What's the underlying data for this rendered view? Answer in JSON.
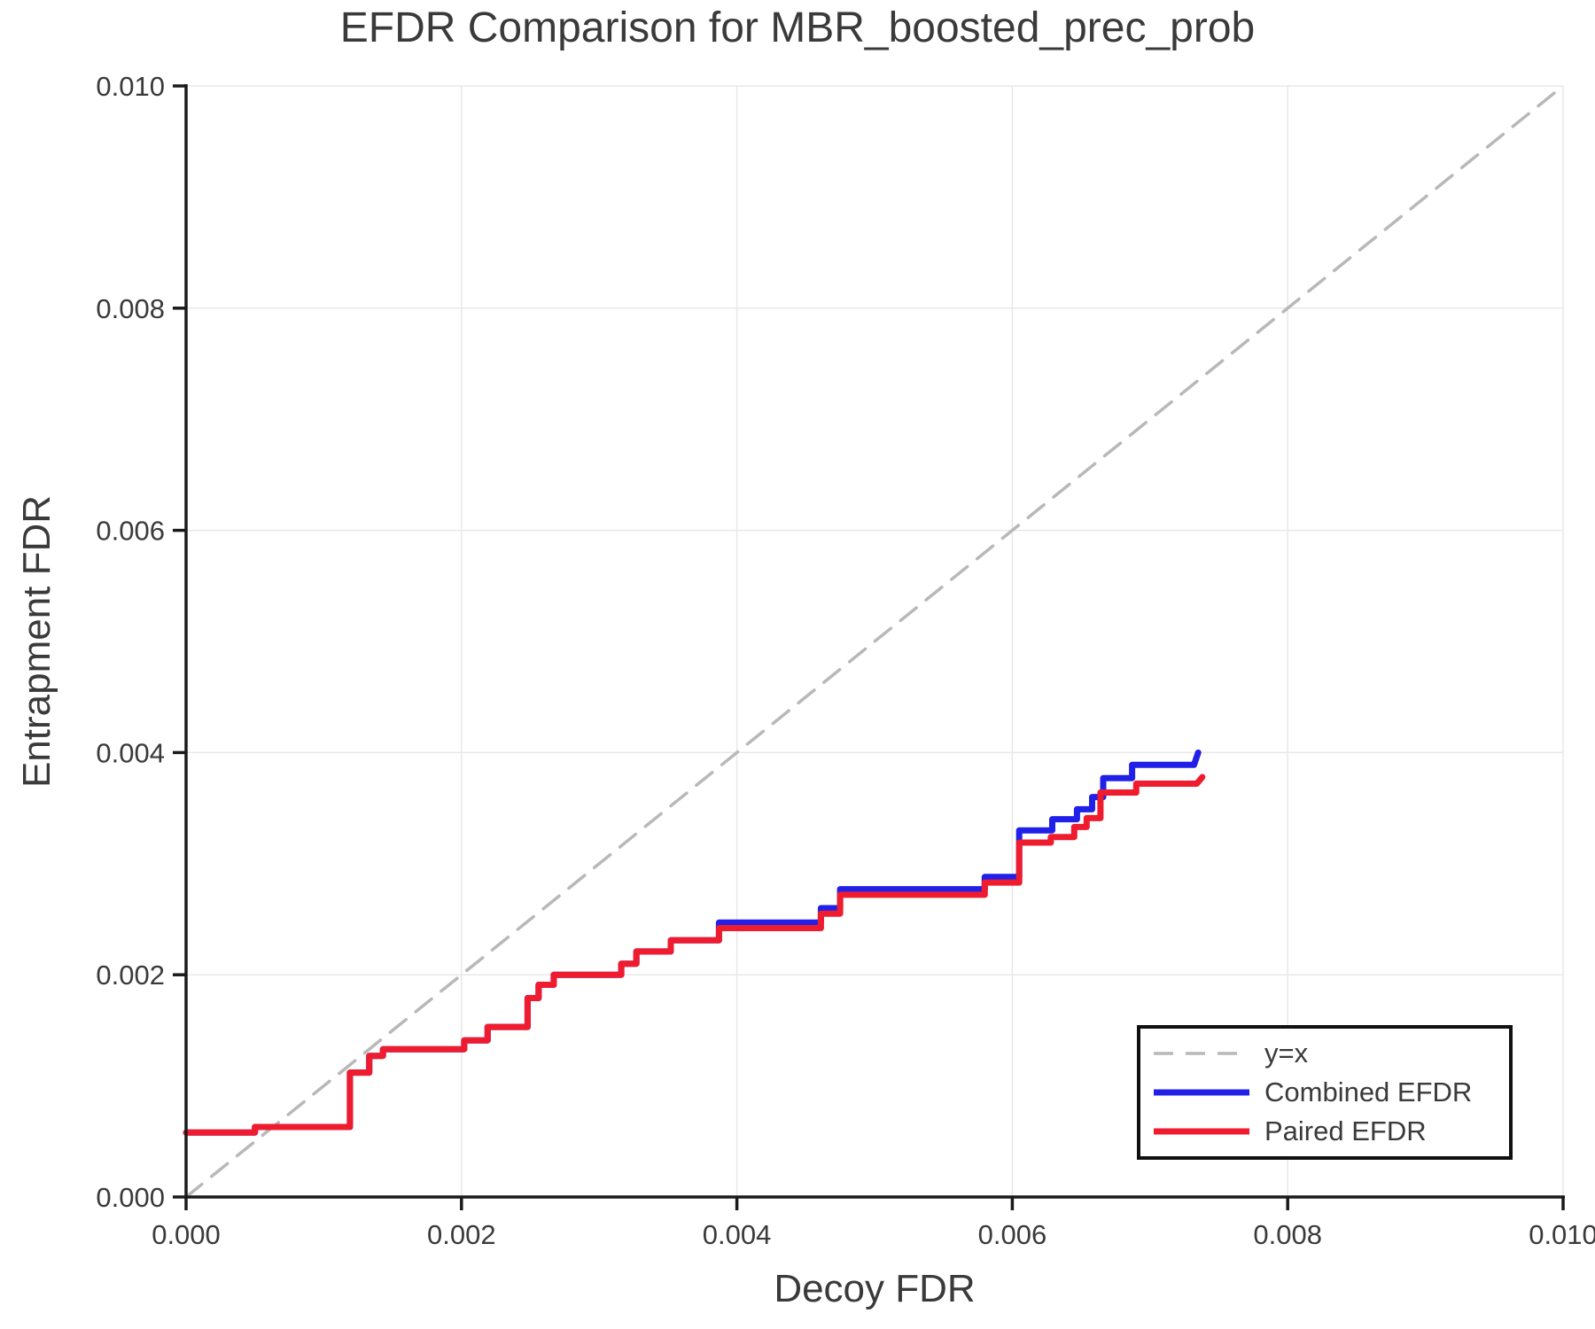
{
  "page": {
    "background_color": "#ffffff",
    "text_color": "#3a3a3a",
    "axis_color": "#1a1a1a",
    "grid_color": "#e8e8e8"
  },
  "chart_data": {
    "type": "line",
    "title": "EFDR Comparison for MBR_boosted_prec_prob",
    "xlabel": "Decoy FDR",
    "ylabel": "Entrapment FDR",
    "xlim": [
      0.0,
      0.01
    ],
    "ylim": [
      0.0,
      0.01
    ],
    "xtick_labels": [
      "0.000",
      "0.002",
      "0.004",
      "0.006",
      "0.008",
      "0.010"
    ],
    "ytick_labels": [
      "0.000",
      "0.002",
      "0.004",
      "0.006",
      "0.008",
      "0.010"
    ],
    "grid": true,
    "legend_position": "lower-right",
    "series": [
      {
        "name": "y=x",
        "style": "dashed",
        "color": "#b8b8b8",
        "points": [
          [
            0.0,
            0.0
          ],
          [
            0.01,
            0.01
          ]
        ]
      },
      {
        "name": "Combined EFDR",
        "style": "solid",
        "color": "#2020e8",
        "points": [
          [
            0.0,
            0.00058
          ],
          [
            0.0005,
            0.00058
          ],
          [
            0.0005,
            0.00063
          ],
          [
            0.00119,
            0.00063
          ],
          [
            0.00119,
            0.00112
          ],
          [
            0.00133,
            0.00112
          ],
          [
            0.00133,
            0.00127
          ],
          [
            0.00143,
            0.00127
          ],
          [
            0.00143,
            0.00133
          ],
          [
            0.00202,
            0.00133
          ],
          [
            0.00202,
            0.00141
          ],
          [
            0.00219,
            0.00141
          ],
          [
            0.00219,
            0.00153
          ],
          [
            0.00248,
            0.00153
          ],
          [
            0.00248,
            0.00179
          ],
          [
            0.00256,
            0.00179
          ],
          [
            0.00256,
            0.00191
          ],
          [
            0.00267,
            0.00191
          ],
          [
            0.00267,
            0.002
          ],
          [
            0.00316,
            0.002
          ],
          [
            0.00316,
            0.0021
          ],
          [
            0.00327,
            0.0021
          ],
          [
            0.00327,
            0.00221
          ],
          [
            0.00352,
            0.00221
          ],
          [
            0.00352,
            0.00231
          ],
          [
            0.00387,
            0.00231
          ],
          [
            0.00387,
            0.00247
          ],
          [
            0.00461,
            0.00247
          ],
          [
            0.00461,
            0.0026
          ],
          [
            0.00475,
            0.0026
          ],
          [
            0.00475,
            0.00277
          ],
          [
            0.0058,
            0.00277
          ],
          [
            0.0058,
            0.00288
          ],
          [
            0.00605,
            0.00288
          ],
          [
            0.00605,
            0.0033
          ],
          [
            0.00629,
            0.0033
          ],
          [
            0.00629,
            0.0034
          ],
          [
            0.00647,
            0.0034
          ],
          [
            0.00647,
            0.00349
          ],
          [
            0.00658,
            0.00349
          ],
          [
            0.00658,
            0.0036
          ],
          [
            0.00666,
            0.0036
          ],
          [
            0.00666,
            0.00377
          ],
          [
            0.00687,
            0.00377
          ],
          [
            0.00687,
            0.00389
          ],
          [
            0.00732,
            0.00389
          ],
          [
            0.00735,
            0.004
          ]
        ]
      },
      {
        "name": "Paired EFDR",
        "style": "solid",
        "color": "#ee1c2e",
        "points": [
          [
            0.0,
            0.00058
          ],
          [
            0.0005,
            0.00058
          ],
          [
            0.0005,
            0.00063
          ],
          [
            0.00119,
            0.00063
          ],
          [
            0.00119,
            0.00112
          ],
          [
            0.00133,
            0.00112
          ],
          [
            0.00133,
            0.00127
          ],
          [
            0.00143,
            0.00127
          ],
          [
            0.00143,
            0.00133
          ],
          [
            0.00202,
            0.00133
          ],
          [
            0.00202,
            0.00141
          ],
          [
            0.00219,
            0.00141
          ],
          [
            0.00219,
            0.00153
          ],
          [
            0.00248,
            0.00153
          ],
          [
            0.00248,
            0.00179
          ],
          [
            0.00256,
            0.00179
          ],
          [
            0.00256,
            0.00191
          ],
          [
            0.00267,
            0.00191
          ],
          [
            0.00267,
            0.002
          ],
          [
            0.00316,
            0.002
          ],
          [
            0.00316,
            0.0021
          ],
          [
            0.00327,
            0.0021
          ],
          [
            0.00327,
            0.00221
          ],
          [
            0.00352,
            0.00221
          ],
          [
            0.00352,
            0.00231
          ],
          [
            0.00387,
            0.00231
          ],
          [
            0.00387,
            0.00242
          ],
          [
            0.00461,
            0.00242
          ],
          [
            0.00461,
            0.00255
          ],
          [
            0.00475,
            0.00255
          ],
          [
            0.00475,
            0.00272
          ],
          [
            0.0058,
            0.00272
          ],
          [
            0.0058,
            0.00283
          ],
          [
            0.00605,
            0.00283
          ],
          [
            0.00605,
            0.00319
          ],
          [
            0.00628,
            0.00319
          ],
          [
            0.00628,
            0.00324
          ],
          [
            0.00645,
            0.00324
          ],
          [
            0.00645,
            0.00333
          ],
          [
            0.00654,
            0.00333
          ],
          [
            0.00654,
            0.00341
          ],
          [
            0.00664,
            0.00341
          ],
          [
            0.00664,
            0.00364
          ],
          [
            0.0069,
            0.00364
          ],
          [
            0.0069,
            0.00372
          ],
          [
            0.00734,
            0.00372
          ],
          [
            0.00738,
            0.00378
          ]
        ]
      }
    ]
  }
}
